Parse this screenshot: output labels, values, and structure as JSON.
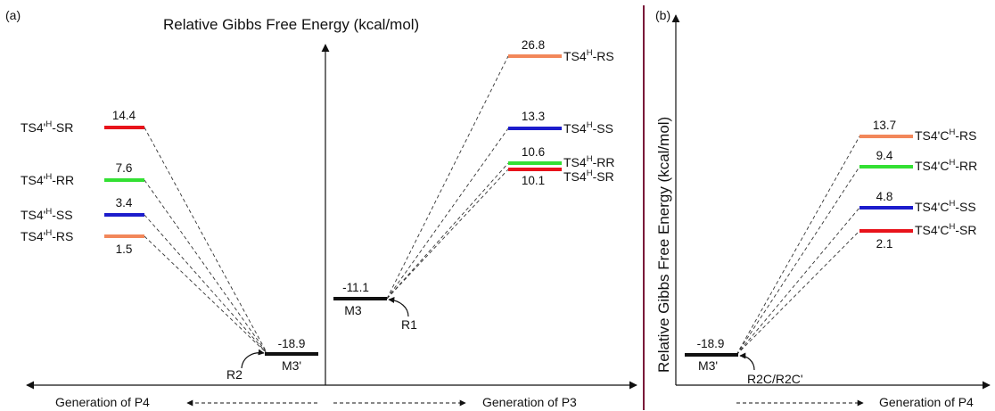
{
  "panel_a": {
    "label": "(a)",
    "title": "Relative Gibbs Free Energy (kcal/mol)",
    "x_left_label": "Generation of P4",
    "x_right_label": "Generation of P3",
    "left_minimum": {
      "name": "M3'",
      "value": "-18.9",
      "reagent": "R2"
    },
    "right_minimum": {
      "name": "M3",
      "value": "-11.1",
      "reagent": "R1"
    },
    "left_levels": [
      {
        "value": "14.4",
        "label_pre": "TS4'",
        "label_sup": "H",
        "label_post": "-SR",
        "color": "#e8131b"
      },
      {
        "value": "7.6",
        "label_pre": "TS4'",
        "label_sup": "H",
        "label_post": "-RR",
        "color": "#33e033"
      },
      {
        "value": "3.4",
        "label_pre": "TS4'",
        "label_sup": "H",
        "label_post": "-SS",
        "color": "#1c1ccc"
      },
      {
        "value": "1.5",
        "label_pre": "TS4'",
        "label_sup": "H",
        "label_post": "-RS",
        "color": "#f2875a"
      }
    ],
    "right_levels": [
      {
        "value": "26.8",
        "label_pre": "TS4",
        "label_sup": "H",
        "label_post": "-RS",
        "color": "#f2875a"
      },
      {
        "value": "13.3",
        "label_pre": "TS4",
        "label_sup": "H",
        "label_post": "-SS",
        "color": "#1c1ccc"
      },
      {
        "value": "10.6",
        "label_pre": "TS4",
        "label_sup": "H",
        "label_post": "-RR",
        "color": "#33e033"
      },
      {
        "value": "10.1",
        "label_pre": "TS4",
        "label_sup": "H",
        "label_post": "-SR",
        "color": "#e8131b"
      }
    ]
  },
  "panel_b": {
    "label": "(b)",
    "y_label": "Relative Gibbs Free Energy (kcal/mol)",
    "x_label": "Generation of P4",
    "minimum": {
      "name": "M3'",
      "value": "-18.9",
      "reagent": "R2C/R2C'"
    },
    "levels": [
      {
        "value": "13.7",
        "label_pre": "TS4'C",
        "label_sup": "H",
        "label_post": "-RS",
        "color": "#f2875a"
      },
      {
        "value": "9.4",
        "label_pre": "TS4'C",
        "label_sup": "H",
        "label_post": "-RR",
        "color": "#33e033"
      },
      {
        "value": "4.8",
        "label_pre": "TS4'C",
        "label_sup": "H",
        "label_post": "-SS",
        "color": "#1c1ccc"
      },
      {
        "value": "2.1",
        "label_pre": "TS4'C",
        "label_sup": "H",
        "label_post": "-SR",
        "color": "#e8131b"
      }
    ]
  },
  "divider_color": "#7a1a3a"
}
